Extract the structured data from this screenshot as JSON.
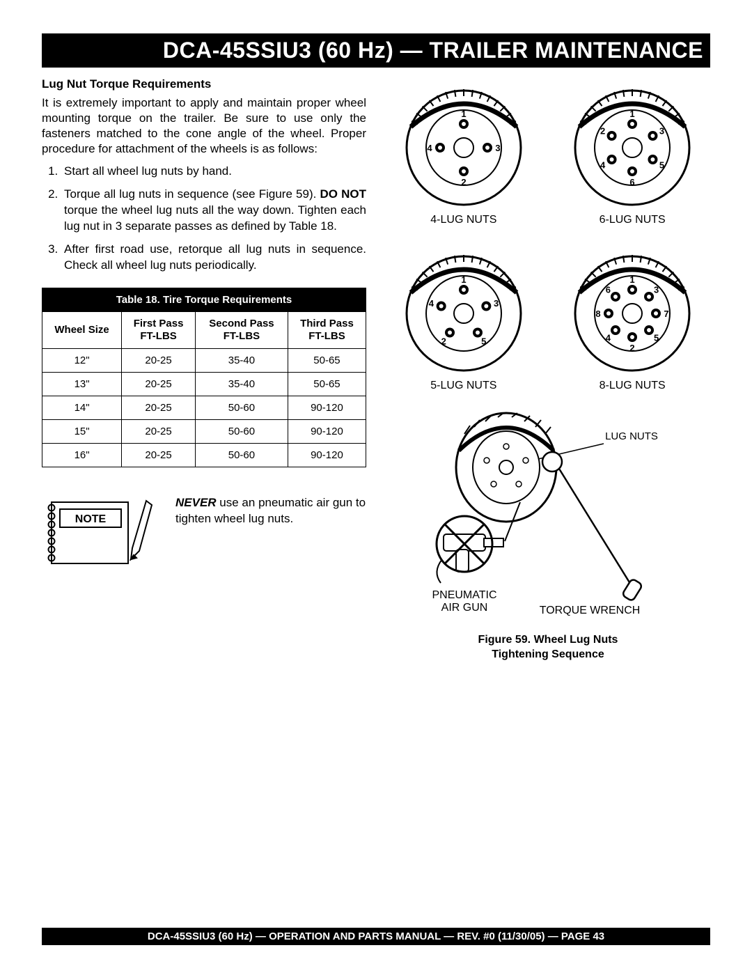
{
  "header": {
    "title": "DCA-45SSIU3 (60 Hz) — TRAILER MAINTENANCE"
  },
  "section": {
    "heading": "Lug Nut Torque Requirements",
    "intro": "It is extremely important to apply and maintain proper wheel mounting torque on the trailer. Be sure to use only the fasteners matched to the cone angle of the wheel. Proper procedure for attachment of the wheels is as follows:",
    "steps": [
      "Start all wheel lug nuts by hand.",
      "Torque all lug nuts in sequence (see Figure 59). DO NOT torque the wheel lug nuts all the way down. Tighten each lug nut in 3 separate passes as defined by Table 18.",
      "After first road use, retorque all lug nuts in sequence. Check all wheel lug nuts periodically."
    ],
    "donot": "DO NOT"
  },
  "table": {
    "caption": "Table 18.  Tire Torque Requirements",
    "columns": [
      "Wheel Size",
      "First Pass\nFT-LBS",
      "Second Pass\nFT-LBS",
      "Third Pass\nFT-LBS"
    ],
    "rows": [
      [
        "12\"",
        "20-25",
        "35-40",
        "50-65"
      ],
      [
        "13\"",
        "20-25",
        "35-40",
        "50-65"
      ],
      [
        "14\"",
        "20-25",
        "50-60",
        "90-120"
      ],
      [
        "15\"",
        "20-25",
        "50-60",
        "90-120"
      ],
      [
        "16\"",
        "20-25",
        "50-60",
        "90-120"
      ]
    ]
  },
  "note": {
    "label": "NOTE",
    "never": "NEVER",
    "text": " use an pneumatic air gun to tighten wheel lug nuts."
  },
  "lug": {
    "items": [
      {
        "label": "4-LUG NUTS",
        "count": 4
      },
      {
        "label": "6-LUG NUTS",
        "count": 6
      },
      {
        "label": "5-LUG NUTS",
        "count": 5
      },
      {
        "label": "8-LUG NUTS",
        "count": 8
      }
    ],
    "sequences": {
      "4": [
        1,
        3,
        2,
        4
      ],
      "5": [
        1,
        3,
        5,
        2,
        4
      ],
      "6": [
        1,
        3,
        5,
        6,
        4,
        2
      ],
      "8": [
        1,
        3,
        7,
        5,
        2,
        4,
        8,
        6
      ]
    },
    "tool_labels": {
      "lug": "LUG NUTS",
      "gun": "PNEUMATIC\nAIR GUN",
      "wrench": "TORQUE WRENCH"
    },
    "figure_caption": "Figure 59.  Wheel Lug Nuts\nTightening Sequence"
  },
  "footer": {
    "text": "DCA-45SSIU3 (60 Hz) — OPERATION AND PARTS MANUAL — REV. #0  (11/30/05) — PAGE 43"
  },
  "style": {
    "black": "#000000",
    "white": "#ffffff"
  }
}
